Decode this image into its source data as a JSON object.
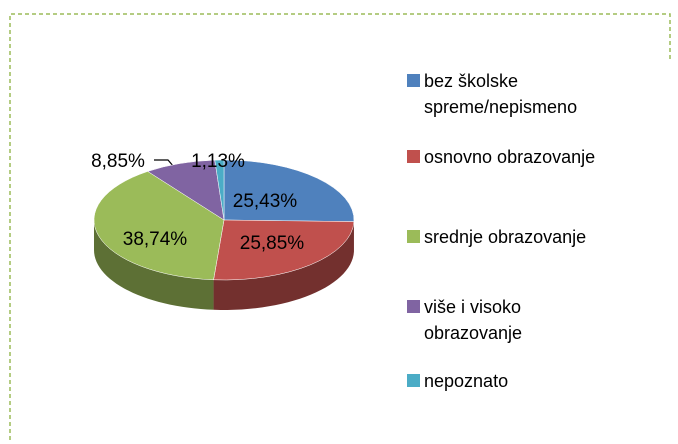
{
  "chart_data": {
    "type": "pie",
    "categories": [
      "bez školske spreme/nepismeno",
      "osnovno obrazovanje",
      "srednje obrazovanje",
      "više i visoko obrazovanje",
      "nepoznato"
    ],
    "values": [
      25.43,
      25.85,
      38.74,
      8.85,
      1.13
    ],
    "value_labels": [
      "25,43%",
      "25,85%",
      "38,74%",
      "8,85%",
      "1,13%"
    ],
    "colors": [
      "#4f81bd",
      "#c0504d",
      "#9bbb59",
      "#8064a2",
      "#4bacc6"
    ],
    "legend": "right"
  }
}
